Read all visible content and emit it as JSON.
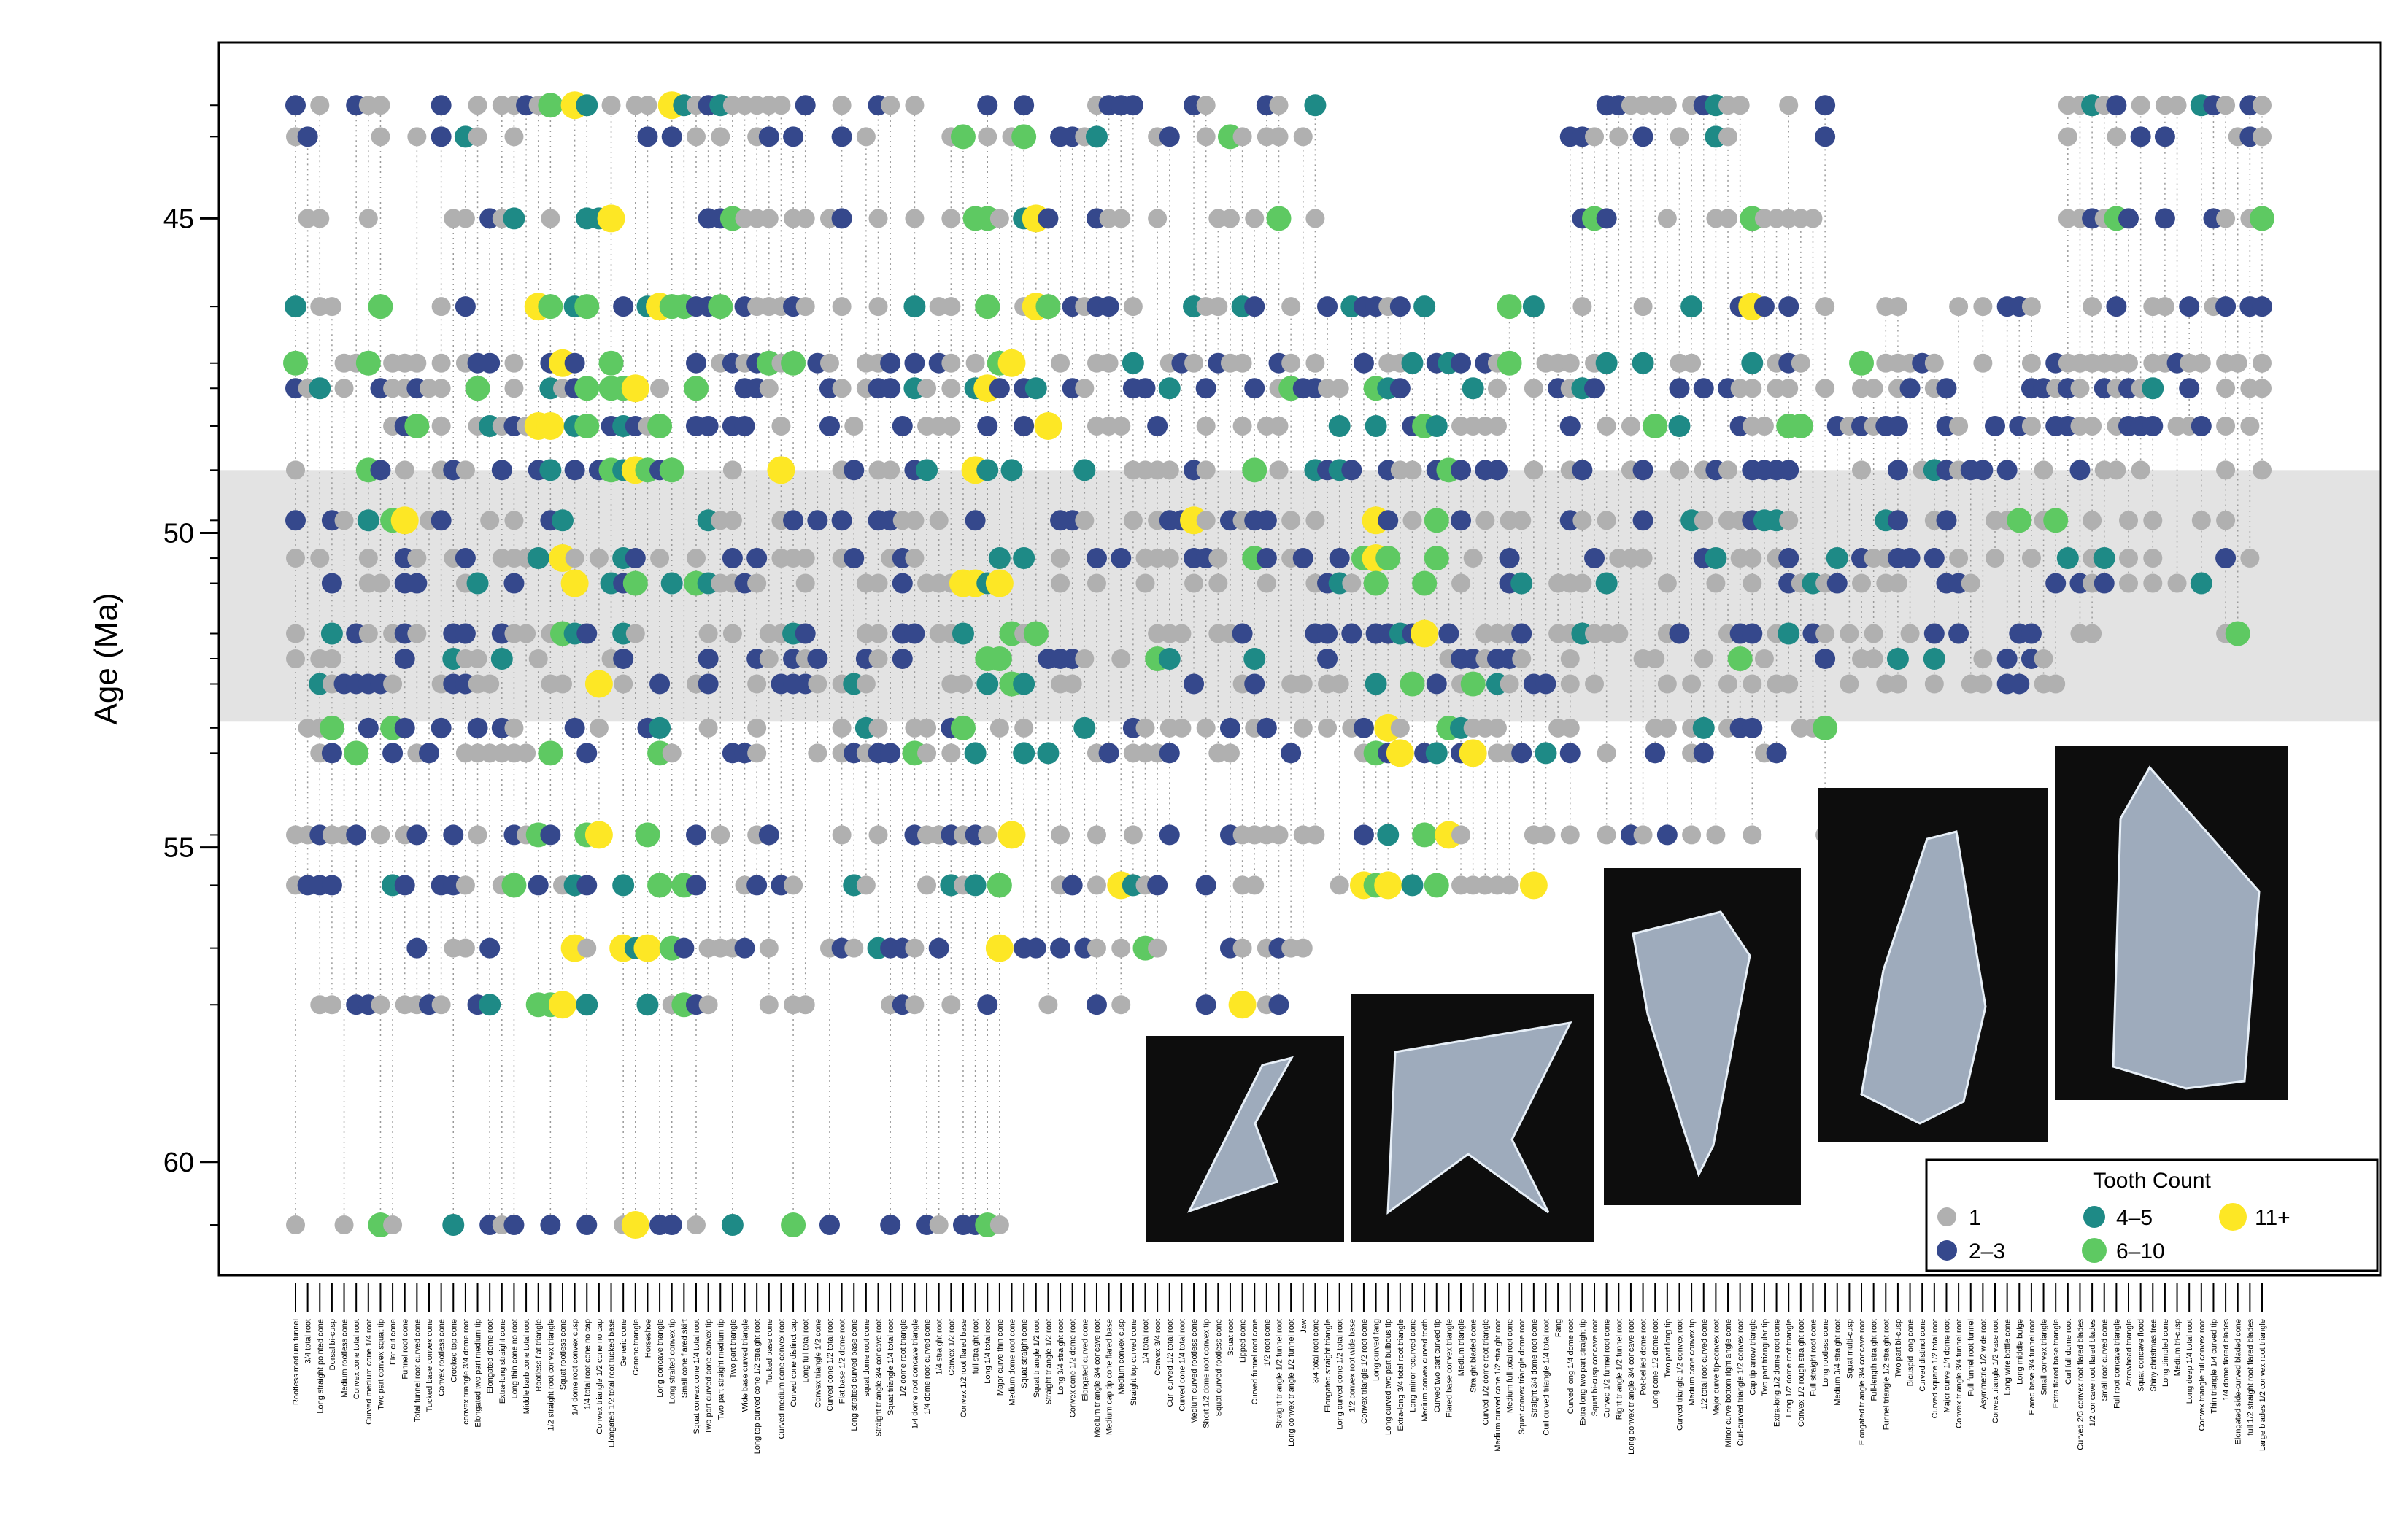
{
  "chart_data": {
    "type": "scatter",
    "ylabel": "Age (Ma)",
    "xlabel": "",
    "title": "",
    "ylim": [
      61.8,
      42.2
    ],
    "y_ticks": [
      45,
      50,
      55,
      60
    ],
    "grid": false,
    "legend": {
      "title": "Tooth Count",
      "placement": "bottom-right",
      "entries": [
        {
          "label": "1",
          "color": "#b0b0b0"
        },
        {
          "label": "2–3",
          "color": "#35488c"
        },
        {
          "label": "4–5",
          "color": "#1e8a86"
        },
        {
          "label": "6–10",
          "color": "#5ec962"
        },
        {
          "label": "11+",
          "color": "#fde725"
        }
      ]
    },
    "sample_ages": [
      43.2,
      43.7,
      45.0,
      46.4,
      47.3,
      47.7,
      48.3,
      49.0,
      49.8,
      50.4,
      50.8,
      51.6,
      52.0,
      52.4,
      53.1,
      53.5,
      54.8,
      55.6,
      56.6,
      57.5,
      61.0
    ],
    "categories": [
      "Rootless medium funnel",
      "3/4 total root",
      "Long straight pointed cone",
      "Dorsal bi-cusp",
      "Medium rootless cone",
      "Convex cone total root",
      "Curved medium cone 1/4 root",
      "Two part convex squat tip",
      "Flat cut cone",
      "Funnel root cone",
      "Total funnel root curved cone",
      "Tucked base convex cone",
      "Convex rootless cone",
      "Crooked top cone",
      "convex triangle 3/4 dome root",
      "Elongated two part medium tip",
      "Elongated dome root",
      "Extra-long straight cone",
      "Long thin cone no root",
      "Middle barb cone total root",
      "Rootless flat triangle",
      "1/2 straight root convex triangle",
      "Squat rootless cone",
      "1/4 dome root convex cusp",
      "1/4 total root cone no cap",
      "Convex triangle 1/2 cone no cap",
      "Elongated 1/2 total root tucked base",
      "Generic cone",
      "Generic triangle",
      "Horseshoe",
      "Long concave triangle",
      "Long straited convex tip",
      "Small cone flared skirt",
      "Squat convex cone 1/4 total root",
      "Two part curved cone convex tip",
      "Two part straight medium tip",
      "Two part triangle",
      "Wide base curved triangle",
      "Long top curved cone 1/2 straight root",
      "Tucked base cone",
      "Curved medium cone convex root",
      "Curved cone distinct cap",
      "Long full total root",
      "Convex triangle 1/2 cone",
      "Curved cone 1/2 total root",
      "Flat base 1/2 dome root",
      "Long straited curved base cone",
      "squat dome root cone",
      "Straight triangle 3/4 concave root",
      "Squat triangle 1/4 total root",
      "1/2 dome root triangle",
      "1/4 dome root concave triangle",
      "1/4 dome root curved cone",
      "1/4 straight root",
      "Convex 1/2 root",
      "Convex 1/2 root flared base",
      "full straight root",
      "Long 1/4 total root",
      "Major curve thin cone",
      "Medium dome root cone",
      "Squat straight cone",
      "Squat triangle 1/2 root",
      "Straight triangle 1/2 root",
      "Long 3/4 straight root",
      "Convex cone 1/2 dome root",
      "Elongated curved cone",
      "Medium triangle 3/4 concave root",
      "Medium cap tip cone flared base",
      "Medium convex cusp",
      "Straight top curved cone",
      "1/4 total root",
      "Convex 3/4 root",
      "Curl curved 1/2 total root",
      "Curved cone 1/4 total root",
      "Medium curved rootless cone",
      "Short 1/2 dome root convex tip",
      "Squat curved rootless cone",
      "Squat root",
      "Lipped cone",
      "Curved funnel root cone",
      "1/2 root cone",
      "Straight triangle 1/2 funnel root",
      "Long convex triangle 1/2 funnel root",
      "Jaw",
      "3/4 total root cone",
      "Elongated straight triangle",
      "Long curved cone 1/2 total root",
      "1/2 convex root wide base",
      "Convex triangle 1/2 root cone",
      "Long curved fang",
      "Long curved two part bulbous tip",
      "Extra-long 3/4 total root triangle",
      "Long minor recurved cone",
      "Medium convex curved tooth",
      "Curved two part curved tip",
      "Flared base convex triangle",
      "Medium triangle",
      "Straight bladed cone",
      "Curved 1/2 dome root triangle",
      "Medium curved cone 1/2 straight root",
      "Medium full total root cone",
      "Squat convex triangle dome root",
      "Straight 3/4 dome root cone",
      "Curl curved triangle 1/4 total root",
      "Fang",
      "Curved long 1/4 dome root",
      "Extra-long two part straight tip",
      "Squat bi-cusp concave root",
      "Curved 1/2 funnel root cone",
      "Right triangle 1/2 funnel root",
      "Long convex triangle 3/4 concave root",
      "Pot-bellied dome root",
      "Long cone 1/2 dome root",
      "Two part long tip",
      "Curved triangle 1/2 convex root",
      "Medium cone convex tip",
      "1/2 total root curved cone",
      "Major curve tip-convex root",
      "Minor curve bottom right angle cone",
      "Curl-curved triangle 1/2 convex root",
      "Cap tip arrow triangle",
      "Two part triangular tip",
      "Extra-long 1/2 dome root cone",
      "Long 1/2 dome root triangle",
      "Convex 1/2 rough straight root",
      "Full straight root cone",
      "Long rootless cone",
      "Medium 3/4 straight root",
      "Squat multi-cusp",
      "Elongated triangle 3/4 concave root",
      "Full-length straight root",
      "Funnel triangle 1/2 straight root",
      "Two part bi-cusp",
      "Bicuspid long cone",
      "Curved distinct cone",
      "Curved square 1/2 total root",
      "Major curve 1/4 dome root",
      "Convex triangle 3/4 funnel root",
      "Full funnel root funnel",
      "Asymmetric 1/2 wide root",
      "Convex triangle 1/2 vase root",
      "Long wire bottle cone",
      "Long middle bulge",
      "Flared base 3/4 funnel root",
      "Small convex triangle",
      "Extra flared base triangle",
      "Curl full dome root",
      "Curved 2/3 convex root flared blades",
      "1/2 concave root flared blades",
      "Small root curved cone",
      "Full root concave triangle",
      "Arrowhead triangle",
      "Squat concave flood",
      "Shiny christmas tree",
      "Long dimpled cone",
      "Medium tri-cusp",
      "Long deep 1/4 total root",
      "Convex triangle full convex root",
      "Thin triangle 1/4 curved tip",
      "1/4 dome flared blades",
      "Elongated side-curved bladed cone",
      "full 1/2 straight root flared blades",
      "Large blades 1/2 convex root triangle"
    ]
  }
}
